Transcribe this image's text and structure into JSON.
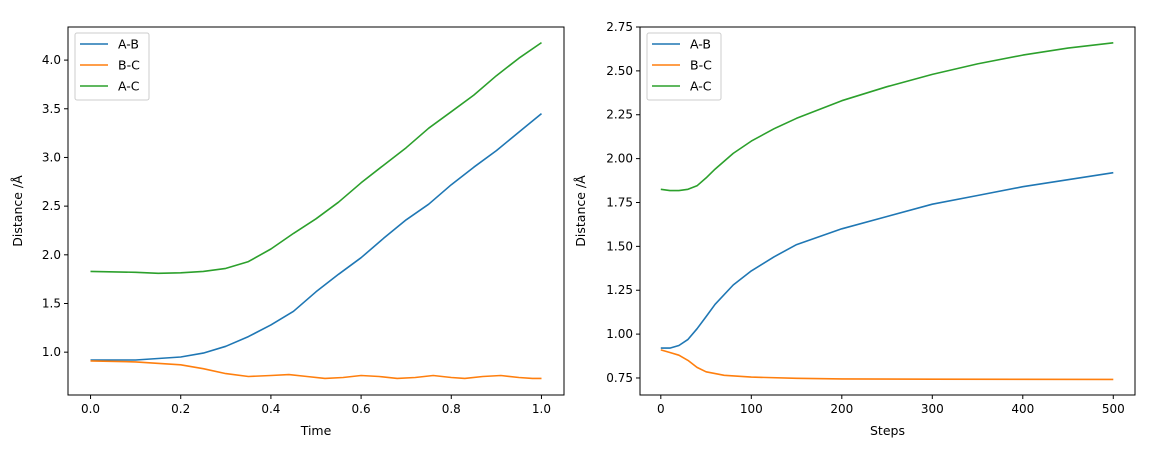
{
  "chart_data": [
    {
      "type": "line",
      "title": "",
      "xlabel": "Time",
      "ylabel": "Distance /Å",
      "xlim": [
        -0.05,
        1.05
      ],
      "ylim": [
        0.56,
        4.34
      ],
      "xticks": [
        0.0,
        0.2,
        0.4,
        0.6,
        0.8,
        1.0
      ],
      "xtick_labels": [
        "0.0",
        "0.2",
        "0.4",
        "0.6",
        "0.8",
        "1.0"
      ],
      "yticks": [
        1.0,
        1.5,
        2.0,
        2.5,
        3.0,
        3.5,
        4.0
      ],
      "ytick_labels": [
        "1.0",
        "1.5",
        "2.0",
        "2.5",
        "3.0",
        "3.5",
        "4.0"
      ],
      "grid": false,
      "legend": "top-left",
      "series": [
        {
          "name": "A-B",
          "color": "#1f77b4",
          "x": [
            0,
            0.1,
            0.2,
            0.25,
            0.3,
            0.35,
            0.4,
            0.45,
            0.5,
            0.55,
            0.6,
            0.65,
            0.7,
            0.75,
            0.8,
            0.85,
            0.9,
            0.95,
            1.0
          ],
          "y": [
            0.92,
            0.92,
            0.95,
            0.99,
            1.06,
            1.16,
            1.28,
            1.42,
            1.62,
            1.8,
            1.97,
            2.17,
            2.36,
            2.52,
            2.72,
            2.9,
            3.07,
            3.26,
            3.45
          ]
        },
        {
          "name": " B-C",
          "color": "#ff7f0e",
          "x": [
            0,
            0.1,
            0.2,
            0.25,
            0.3,
            0.35,
            0.4,
            0.44,
            0.48,
            0.52,
            0.56,
            0.6,
            0.64,
            0.68,
            0.72,
            0.76,
            0.8,
            0.83,
            0.87,
            0.91,
            0.95,
            0.98,
            1.0
          ],
          "y": [
            0.91,
            0.9,
            0.87,
            0.83,
            0.78,
            0.75,
            0.76,
            0.77,
            0.75,
            0.73,
            0.74,
            0.76,
            0.75,
            0.73,
            0.74,
            0.76,
            0.74,
            0.73,
            0.75,
            0.76,
            0.74,
            0.73,
            0.73
          ]
        },
        {
          "name": "A-C",
          "color": "#2ca02c",
          "x": [
            0,
            0.1,
            0.15,
            0.2,
            0.25,
            0.3,
            0.35,
            0.4,
            0.45,
            0.5,
            0.55,
            0.6,
            0.65,
            0.7,
            0.75,
            0.8,
            0.85,
            0.9,
            0.95,
            1.0
          ],
          "y": [
            1.83,
            1.82,
            1.81,
            1.815,
            1.83,
            1.86,
            1.93,
            2.06,
            2.22,
            2.37,
            2.54,
            2.74,
            2.92,
            3.1,
            3.3,
            3.47,
            3.64,
            3.84,
            4.02,
            4.18
          ]
        }
      ]
    },
    {
      "type": "line",
      "title": "",
      "xlabel": "Steps",
      "ylabel": "Distance /Å",
      "xlim": [
        -23,
        524
      ],
      "ylim": [
        0.653,
        2.75
      ],
      "xticks": [
        0,
        100,
        200,
        300,
        400,
        500
      ],
      "xtick_labels": [
        "0",
        "100",
        "200",
        "300",
        "400",
        "500"
      ],
      "yticks": [
        0.75,
        1.0,
        1.25,
        1.5,
        1.75,
        2.0,
        2.25,
        2.5,
        2.75
      ],
      "ytick_labels": [
        "0.75",
        "1.00",
        "1.25",
        "1.50",
        "1.75",
        "2.00",
        "2.25",
        "2.50",
        "2.75"
      ],
      "grid": false,
      "legend": "top-left",
      "series": [
        {
          "name": "A-B",
          "color": "#1f77b4",
          "x": [
            0,
            10,
            20,
            30,
            40,
            50,
            60,
            80,
            100,
            125,
            150,
            200,
            250,
            300,
            350,
            400,
            450,
            500
          ],
          "y": [
            0.92,
            0.92,
            0.935,
            0.97,
            1.03,
            1.1,
            1.17,
            1.28,
            1.36,
            1.44,
            1.51,
            1.6,
            1.67,
            1.74,
            1.79,
            1.84,
            1.88,
            1.92
          ]
        },
        {
          "name": " B-C",
          "color": "#ff7f0e",
          "x": [
            0,
            10,
            20,
            30,
            40,
            50,
            70,
            100,
            150,
            200,
            300,
            500
          ],
          "y": [
            0.91,
            0.895,
            0.88,
            0.85,
            0.81,
            0.785,
            0.765,
            0.755,
            0.748,
            0.745,
            0.743,
            0.742
          ]
        },
        {
          "name": "A-C",
          "color": "#2ca02c",
          "x": [
            0,
            10,
            20,
            30,
            40,
            50,
            60,
            80,
            100,
            125,
            150,
            200,
            250,
            300,
            350,
            400,
            450,
            500
          ],
          "y": [
            1.825,
            1.818,
            1.818,
            1.825,
            1.845,
            1.89,
            1.94,
            2.03,
            2.1,
            2.17,
            2.23,
            2.33,
            2.41,
            2.48,
            2.54,
            2.59,
            2.63,
            2.66
          ]
        }
      ]
    }
  ]
}
